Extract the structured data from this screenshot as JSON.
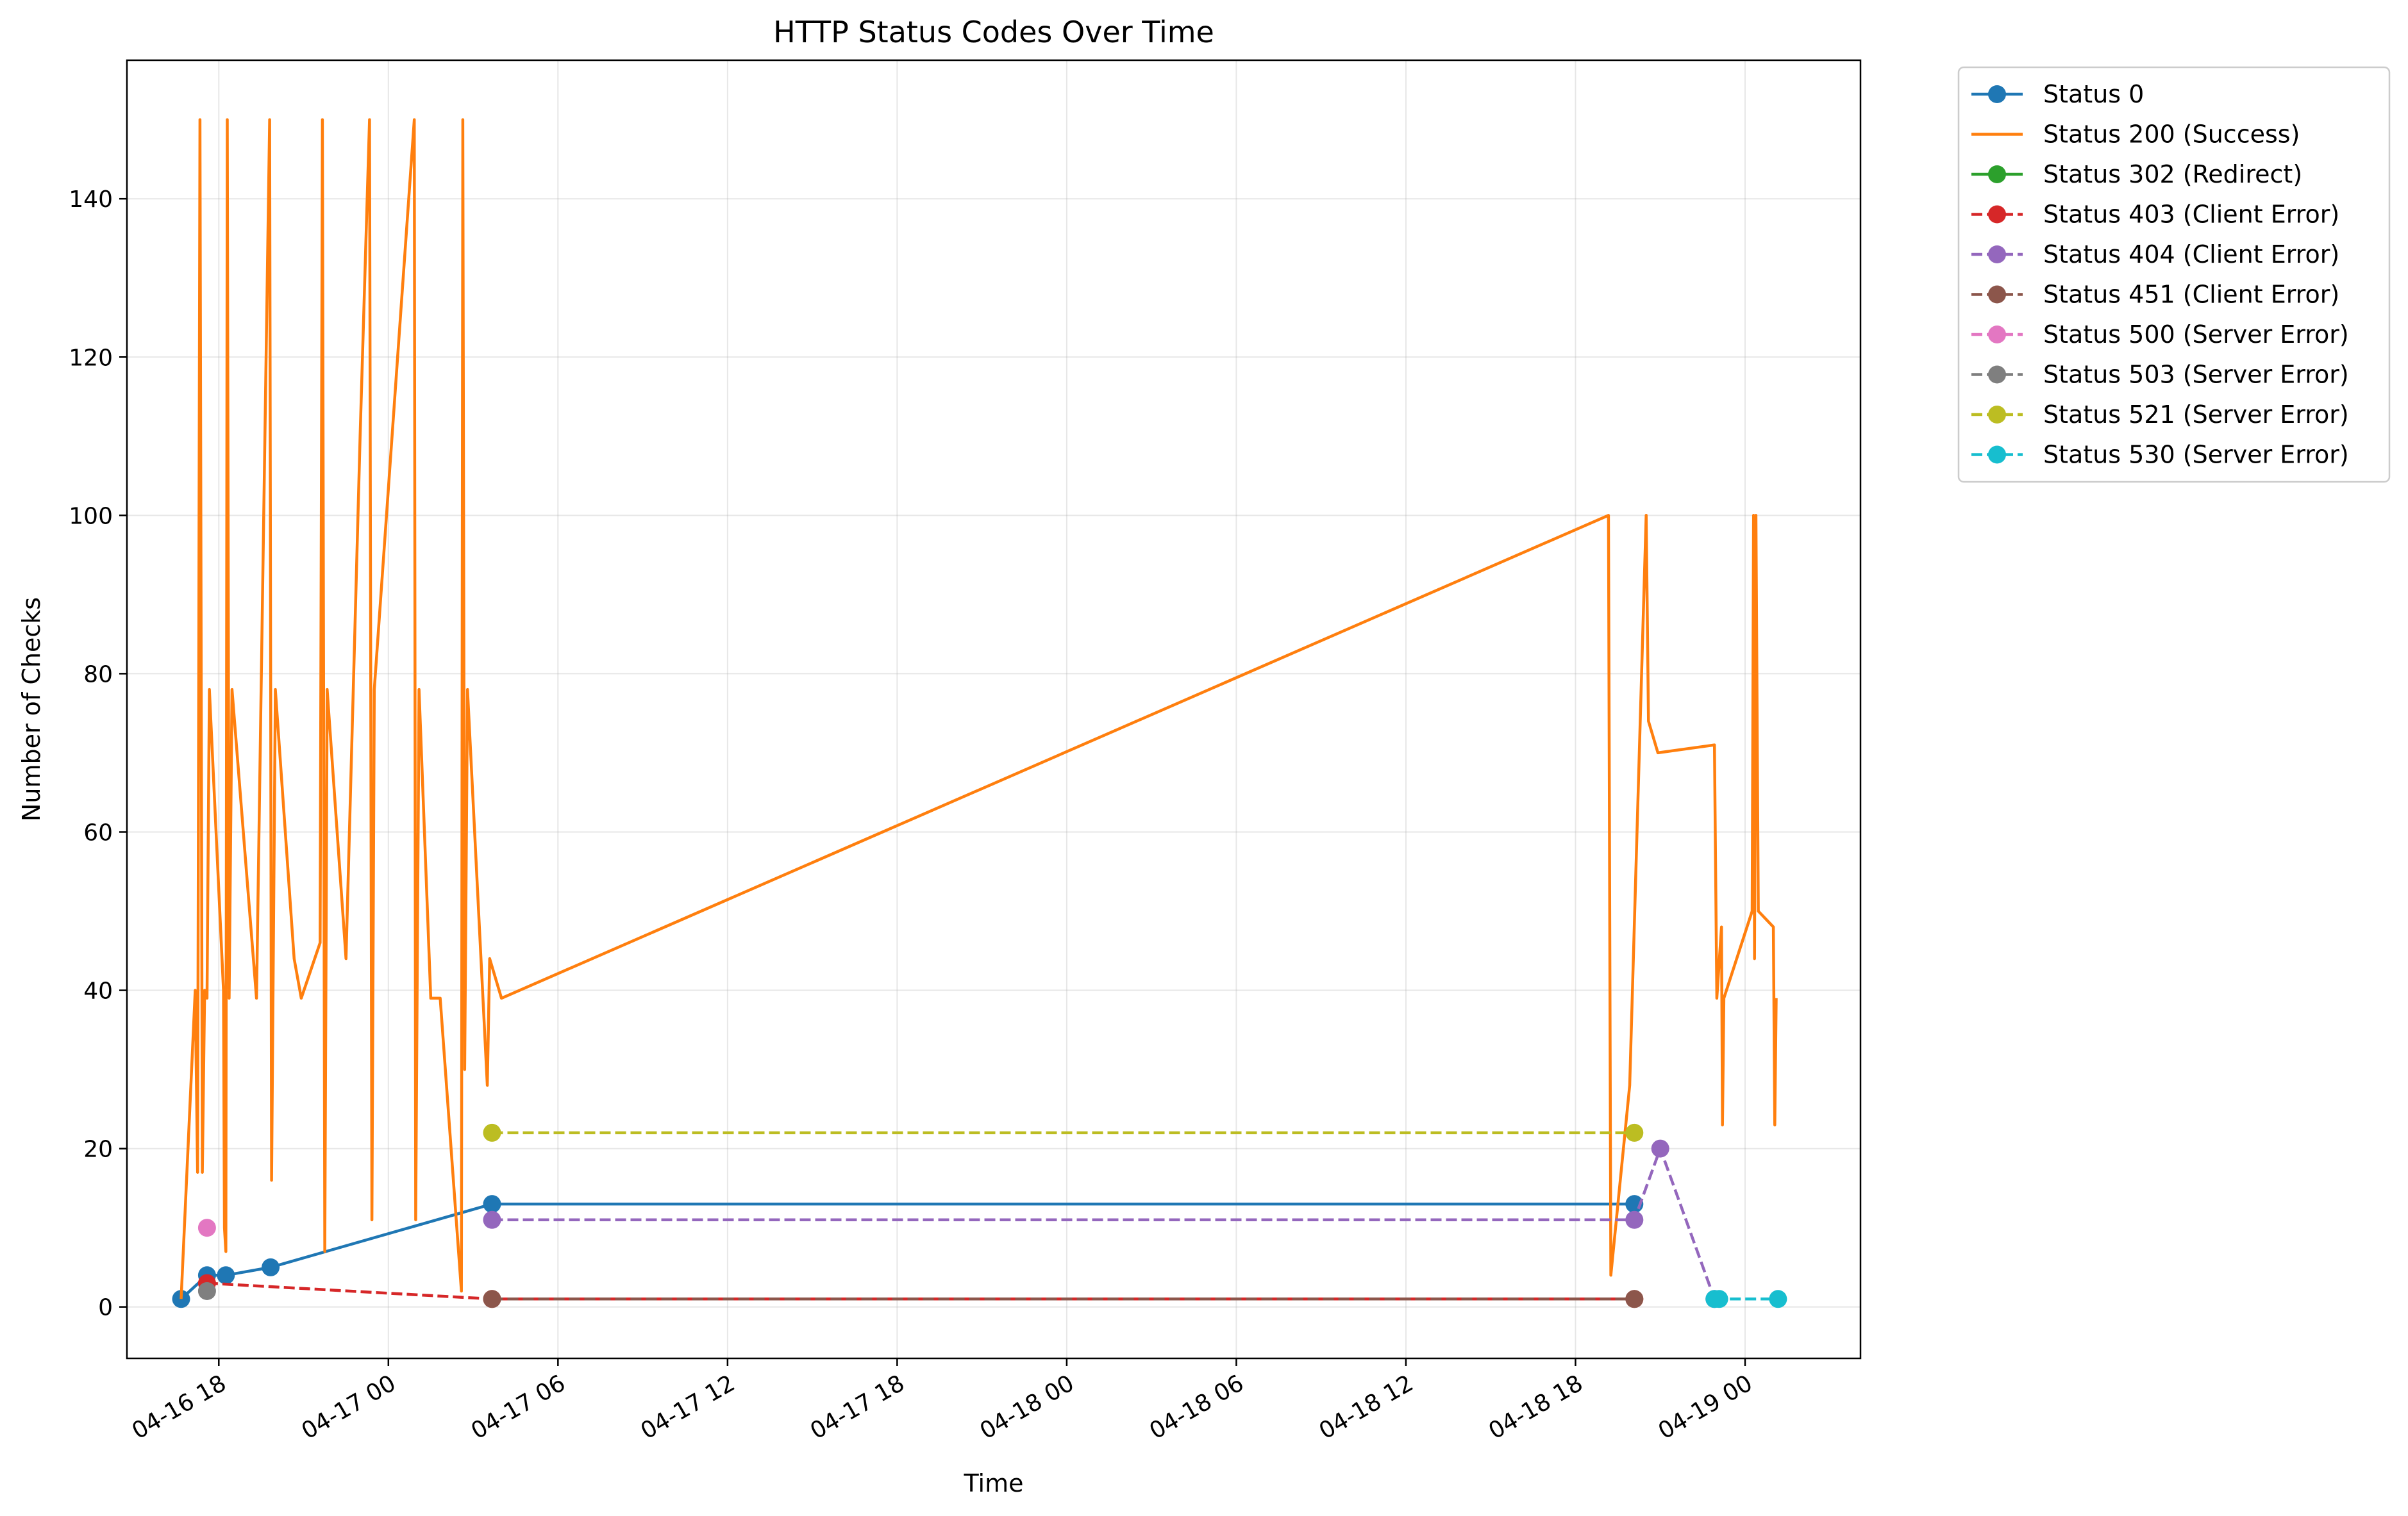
{
  "chart_data": {
    "type": "line",
    "title": "HTTP Status Codes Over Time",
    "xlabel": "Time",
    "ylabel": "Number of Checks",
    "x_is_time": true,
    "xlim": [
      "2024-04-16T14:45",
      "2024-04-19T04:05"
    ],
    "ylim": [
      -6.5,
      157.5
    ],
    "yticks": [
      0,
      20,
      40,
      60,
      80,
      100,
      120,
      140
    ],
    "xticks": [
      {
        "t": "2024-04-16T18:00",
        "label": "04-16 18"
      },
      {
        "t": "2024-04-17T00:00",
        "label": "04-17 00"
      },
      {
        "t": "2024-04-17T06:00",
        "label": "04-17 06"
      },
      {
        "t": "2024-04-17T12:00",
        "label": "04-17 12"
      },
      {
        "t": "2024-04-17T18:00",
        "label": "04-17 18"
      },
      {
        "t": "2024-04-18T00:00",
        "label": "04-18 00"
      },
      {
        "t": "2024-04-18T06:00",
        "label": "04-18 06"
      },
      {
        "t": "2024-04-18T12:00",
        "label": "04-18 12"
      },
      {
        "t": "2024-04-18T18:00",
        "label": "04-18 18"
      },
      {
        "t": "2024-04-19T00:00",
        "label": "04-19 00"
      }
    ],
    "grid": true,
    "legend_position": "outside-top-right",
    "series": [
      {
        "name": "Status 0",
        "color": "#1f77b4",
        "dashed": false,
        "markers": true,
        "points": [
          [
            "2024-04-16T16:40",
            1
          ],
          [
            "2024-04-16T17:35",
            4
          ],
          [
            "2024-04-16T18:15",
            4
          ],
          [
            "2024-04-16T19:50",
            5
          ],
          [
            "2024-04-17T03:40",
            13
          ],
          [
            "2024-04-18T20:05",
            13
          ]
        ]
      },
      {
        "name": "Status 200 (Success)",
        "color": "#ff7f0e",
        "dashed": false,
        "markers": false,
        "points": [
          [
            "2024-04-16T16:40",
            1
          ],
          [
            "2024-04-16T17:10",
            40
          ],
          [
            "2024-04-16T17:15",
            17
          ],
          [
            "2024-04-16T17:20",
            150
          ],
          [
            "2024-04-16T17:25",
            17
          ],
          [
            "2024-04-16T17:30",
            40
          ],
          [
            "2024-04-16T17:35",
            39
          ],
          [
            "2024-04-16T17:40",
            78
          ],
          [
            "2024-04-16T18:10",
            40
          ],
          [
            "2024-04-16T18:12",
            10
          ],
          [
            "2024-04-16T18:15",
            7
          ],
          [
            "2024-04-16T18:18",
            150
          ],
          [
            "2024-04-16T18:22",
            39
          ],
          [
            "2024-04-16T18:28",
            78
          ],
          [
            "2024-04-16T19:20",
            39
          ],
          [
            "2024-04-16T19:48",
            150
          ],
          [
            "2024-04-16T19:52",
            16
          ],
          [
            "2024-04-16T20:00",
            78
          ],
          [
            "2024-04-16T20:40",
            44
          ],
          [
            "2024-04-16T20:55",
            39
          ],
          [
            "2024-04-16T21:35",
            46
          ],
          [
            "2024-04-16T21:40",
            150
          ],
          [
            "2024-04-16T21:45",
            7
          ],
          [
            "2024-04-16T21:50",
            78
          ],
          [
            "2024-04-16T22:30",
            44
          ],
          [
            "2024-04-16T23:00",
            110
          ],
          [
            "2024-04-16T23:20",
            150
          ],
          [
            "2024-04-16T23:25",
            11
          ],
          [
            "2024-04-16T23:30",
            78
          ],
          [
            "2024-04-17T00:55",
            150
          ],
          [
            "2024-04-17T00:58",
            11
          ],
          [
            "2024-04-17T01:05",
            78
          ],
          [
            "2024-04-17T01:30",
            39
          ],
          [
            "2024-04-17T01:50",
            39
          ],
          [
            "2024-04-17T02:35",
            2
          ],
          [
            "2024-04-17T02:38",
            150
          ],
          [
            "2024-04-17T02:42",
            30
          ],
          [
            "2024-04-17T02:48",
            78
          ],
          [
            "2024-04-17T03:30",
            28
          ],
          [
            "2024-04-17T03:35",
            44
          ],
          [
            "2024-04-17T04:00",
            39
          ],
          [
            "2024-04-18T19:10",
            100
          ],
          [
            "2024-04-18T19:15",
            4
          ],
          [
            "2024-04-18T19:55",
            28
          ],
          [
            "2024-04-18T20:30",
            100
          ],
          [
            "2024-04-18T20:35",
            74
          ],
          [
            "2024-04-18T20:55",
            70
          ],
          [
            "2024-04-18T22:55",
            71
          ],
          [
            "2024-04-18T23:00",
            39
          ],
          [
            "2024-04-18T23:10",
            48
          ],
          [
            "2024-04-18T23:12",
            23
          ],
          [
            "2024-04-18T23:15",
            39
          ],
          [
            "2024-04-19T00:15",
            50
          ],
          [
            "2024-04-19T00:18",
            100
          ],
          [
            "2024-04-19T00:20",
            44
          ],
          [
            "2024-04-19T00:23",
            100
          ],
          [
            "2024-04-19T00:28",
            50
          ],
          [
            "2024-04-19T01:00",
            48
          ],
          [
            "2024-04-19T01:03",
            23
          ],
          [
            "2024-04-19T01:06",
            39
          ]
        ]
      },
      {
        "name": "Status 302 (Redirect)",
        "color": "#2ca02c",
        "dashed": false,
        "markers": true,
        "points": []
      },
      {
        "name": "Status 403 (Client Error)",
        "color": "#d62728",
        "dashed": true,
        "markers": true,
        "points": [
          [
            "2024-04-16T17:35",
            3
          ],
          [
            "2024-04-17T03:40",
            1
          ],
          [
            "2024-04-18T20:05",
            1
          ]
        ]
      },
      {
        "name": "Status 404 (Client Error)",
        "color": "#9467bd",
        "dashed": true,
        "markers": true,
        "points": [
          [
            "2024-04-17T03:40",
            11
          ],
          [
            "2024-04-18T20:05",
            11
          ],
          [
            "2024-04-18T21:00",
            20
          ],
          [
            "2024-04-18T22:55",
            1
          ]
        ]
      },
      {
        "name": "Status 451 (Client Error)",
        "color": "#8c564b",
        "dashed": true,
        "markers": true,
        "points": [
          [
            "2024-04-17T03:40",
            1
          ],
          [
            "2024-04-18T20:05",
            1
          ]
        ]
      },
      {
        "name": "Status 500 (Server Error)",
        "color": "#e377c2",
        "dashed": true,
        "markers": true,
        "points": [
          [
            "2024-04-16T17:35",
            10
          ]
        ]
      },
      {
        "name": "Status 503 (Server Error)",
        "color": "#7f7f7f",
        "dashed": true,
        "markers": true,
        "points": [
          [
            "2024-04-16T17:35",
            2
          ]
        ]
      },
      {
        "name": "Status 521 (Server Error)",
        "color": "#bcbd22",
        "dashed": true,
        "markers": true,
        "points": [
          [
            "2024-04-17T03:40",
            22
          ],
          [
            "2024-04-18T20:05",
            22
          ]
        ]
      },
      {
        "name": "Status 530 (Server Error)",
        "color": "#17becf",
        "dashed": true,
        "markers": true,
        "points": [
          [
            "2024-04-18T22:55",
            1
          ],
          [
            "2024-04-18T23:05",
            1
          ],
          [
            "2024-04-19T01:10",
            1
          ]
        ]
      }
    ]
  }
}
